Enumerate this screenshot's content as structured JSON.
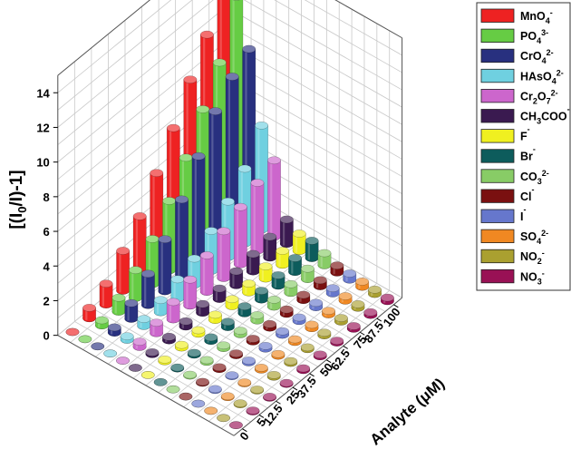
{
  "chart_data": {
    "type": "bar",
    "style": "3d-cylinder",
    "ylabel_parts": [
      "[(I",
      "0",
      "/I)-1]"
    ],
    "xlabel": "Analyte (μM)",
    "ylim": [
      0,
      15
    ],
    "yticks": [
      "0",
      "2",
      "4",
      "6",
      "8",
      "10",
      "12",
      "14"
    ],
    "categories": [
      "0",
      "5",
      "12.5",
      "25",
      "37.5",
      "50",
      "62.5",
      "75",
      "87.5",
      "100"
    ],
    "grid": true,
    "legend_position": "right",
    "series": [
      {
        "base": "MnO",
        "sub": "4",
        "sup": "-",
        "color": "#ee2222",
        "values": [
          0,
          0.6,
          1.2,
          2.3,
          3.5,
          5.2,
          7.0,
          9.0,
          10.8,
          14.2
        ]
      },
      {
        "base": "PO",
        "sub": "4",
        "sup": "3-",
        "color": "#66cc44",
        "values": [
          0,
          0.3,
          0.8,
          1.6,
          2.6,
          4.0,
          5.7,
          7.7,
          9.6,
          12.6
        ]
      },
      {
        "base": "CrO",
        "sub": "4",
        "sup": "2-",
        "color": "#28307f",
        "values": [
          0,
          0.3,
          0.9,
          1.8,
          3.0,
          4.5,
          6.2,
          8.0,
          9.2,
          10.0
        ]
      },
      {
        "base": "HAsO",
        "sub": "4",
        "sup": "2-",
        "color": "#6fd0e0",
        "values": [
          0,
          0.2,
          0.4,
          0.7,
          1.1,
          1.5,
          2.3,
          3.2,
          4.3,
          6.0
        ]
      },
      {
        "base": "Cr",
        "sub": "2",
        "mid": "O",
        "sub2": "7",
        "sup": "2-",
        "color": "#cc66cc",
        "values": [
          0,
          0.3,
          0.6,
          1.0,
          1.5,
          2.1,
          2.7,
          3.3,
          3.9,
          4.4
        ]
      },
      {
        "base": "CH",
        "sub": "3",
        "mid": "COO",
        "sup": "-",
        "color": "#3a1a50",
        "values": [
          0,
          0.1,
          0.2,
          0.3,
          0.5,
          0.6,
          0.8,
          1.0,
          1.2,
          1.4
        ]
      },
      {
        "base": "F",
        "sup": "-",
        "color": "#f0f020",
        "values": [
          0,
          0.1,
          0.15,
          0.2,
          0.3,
          0.4,
          0.5,
          0.7,
          0.8,
          1.0
        ]
      },
      {
        "base": "Br",
        "sup": "-",
        "color": "#0d5c5c",
        "values": [
          0,
          0.05,
          0.1,
          0.2,
          0.3,
          0.4,
          0.5,
          0.6,
          0.8,
          1.0
        ]
      },
      {
        "base": "CO",
        "sub": "3",
        "sup": "2-",
        "color": "#88cc66",
        "values": [
          0,
          0.05,
          0.1,
          0.15,
          0.2,
          0.3,
          0.4,
          0.5,
          0.6,
          0.7
        ]
      },
      {
        "base": "Cl",
        "sup": "-",
        "color": "#7a1010",
        "values": [
          0,
          0.05,
          0.1,
          0.1,
          0.15,
          0.2,
          0.25,
          0.3,
          0.35,
          0.4
        ]
      },
      {
        "base": "I",
        "sup": "-",
        "color": "#6677cc",
        "values": [
          0,
          0.05,
          0.05,
          0.1,
          0.15,
          0.2,
          0.2,
          0.25,
          0.3,
          0.35
        ]
      },
      {
        "base": "SO",
        "sub": "4",
        "sup": "2-",
        "color": "#f08822",
        "values": [
          0,
          0.05,
          0.05,
          0.1,
          0.1,
          0.15,
          0.2,
          0.2,
          0.25,
          0.3
        ]
      },
      {
        "base": "NO",
        "sub": "2",
        "sup": "-",
        "color": "#aaa030",
        "values": [
          0,
          0.05,
          0.05,
          0.1,
          0.1,
          0.1,
          0.15,
          0.2,
          0.2,
          0.25
        ]
      },
      {
        "base": "NO",
        "sub": "3",
        "sup": "-",
        "color": "#991155",
        "values": [
          0,
          0.05,
          0.05,
          0.05,
          0.1,
          0.1,
          0.1,
          0.15,
          0.15,
          0.2
        ]
      }
    ]
  }
}
